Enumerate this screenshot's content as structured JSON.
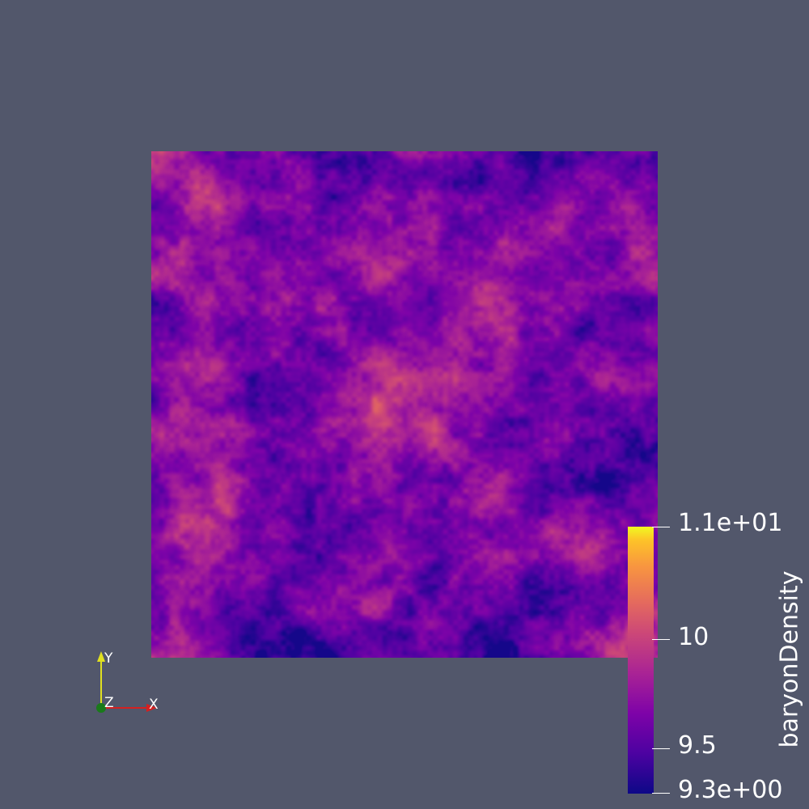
{
  "scalar_bar": {
    "title": "baryonDensity",
    "range": [
      9.3,
      11.0
    ],
    "ticks": [
      {
        "value": 11.0,
        "label": "1.1e+01"
      },
      {
        "value": 10.0,
        "label": "10"
      },
      {
        "value": 9.5,
        "label": "9.5"
      },
      {
        "value": 9.3,
        "label": "9.3e+00"
      }
    ]
  },
  "orientation_axes": {
    "x_label": "X",
    "y_label": "Y",
    "z_label": "Z"
  },
  "colors": {
    "background": "#52576b",
    "colormap": "Plasma",
    "x_axis": "#d42020",
    "y_axis": "#e0e020",
    "z_axis": "#1a7a1a"
  }
}
